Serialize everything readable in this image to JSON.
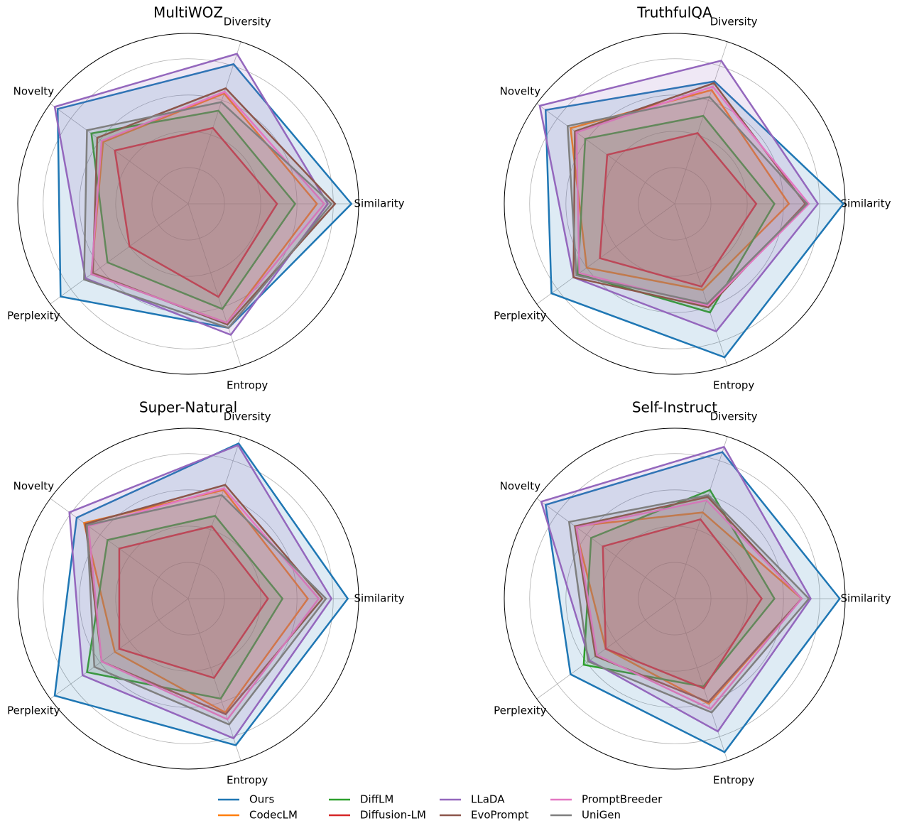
{
  "chart_data": [
    {
      "type": "radar",
      "title": "MultiWOZ",
      "categories": [
        "Similarity",
        "Diversity",
        "Novelty",
        "Perplexity",
        "Entropy"
      ],
      "rlim": [
        0,
        0.94
      ],
      "rticks": [
        0.2,
        0.4,
        0.6,
        0.8
      ],
      "series": [
        {
          "name": "Ours",
          "color": "#1f77b4",
          "values": [
            0.9,
            0.81,
            0.89,
            0.87,
            0.72
          ]
        },
        {
          "name": "CodecLM",
          "color": "#ff7f0e",
          "values": [
            0.71,
            0.64,
            0.58,
            0.66,
            0.69
          ]
        },
        {
          "name": "DiffLM",
          "color": "#2ca02c",
          "values": [
            0.59,
            0.54,
            0.66,
            0.55,
            0.61
          ]
        },
        {
          "name": "Diffusion-LM",
          "color": "#d62728",
          "values": [
            0.49,
            0.44,
            0.5,
            0.4,
            0.54
          ]
        },
        {
          "name": "LLaDA",
          "color": "#9467bd",
          "values": [
            0.77,
            0.87,
            0.91,
            0.7,
            0.76
          ]
        },
        {
          "name": "EvoPrompt",
          "color": "#8c564b",
          "values": [
            0.81,
            0.67,
            0.62,
            0.65,
            0.7
          ]
        },
        {
          "name": "PromptBreeder",
          "color": "#e377c2",
          "values": [
            0.75,
            0.65,
            0.59,
            0.66,
            0.69
          ]
        },
        {
          "name": "UniGen",
          "color": "#7f7f7f",
          "values": [
            0.79,
            0.59,
            0.69,
            0.71,
            0.72
          ]
        }
      ]
    },
    {
      "type": "radar",
      "title": "TruthfulQA",
      "categories": [
        "Similarity",
        "Diversity",
        "Novelty",
        "Perplexity",
        "Entropy"
      ],
      "rlim": [
        0,
        0.94
      ],
      "rticks": [
        0.2,
        0.4,
        0.6,
        0.8
      ],
      "series": [
        {
          "name": "Ours",
          "color": "#1f77b4",
          "values": [
            0.93,
            0.71,
            0.88,
            0.84,
            0.89
          ]
        },
        {
          "name": "CodecLM",
          "color": "#ff7f0e",
          "values": [
            0.63,
            0.66,
            0.71,
            0.6,
            0.5
          ]
        },
        {
          "name": "DiffLM",
          "color": "#2ca02c",
          "values": [
            0.55,
            0.51,
            0.61,
            0.66,
            0.63
          ]
        },
        {
          "name": "Diffusion-LM",
          "color": "#d62728",
          "values": [
            0.45,
            0.41,
            0.46,
            0.51,
            0.48
          ]
        },
        {
          "name": "LLaDA",
          "color": "#9467bd",
          "values": [
            0.79,
            0.83,
            0.92,
            0.69,
            0.74
          ]
        },
        {
          "name": "EvoPrompt",
          "color": "#8c564b",
          "values": [
            0.72,
            0.7,
            0.68,
            0.69,
            0.6
          ]
        },
        {
          "name": "PromptBreeder",
          "color": "#e377c2",
          "values": [
            0.74,
            0.68,
            0.67,
            0.65,
            0.59
          ]
        },
        {
          "name": "UniGen",
          "color": "#7f7f7f",
          "values": [
            0.73,
            0.62,
            0.73,
            0.67,
            0.58
          ]
        }
      ]
    },
    {
      "type": "radar",
      "title": "Super-Natural",
      "categories": [
        "Similarity",
        "Diversity",
        "Novelty",
        "Perplexity",
        "Entropy"
      ],
      "rlim": [
        0,
        0.94
      ],
      "rticks": [
        0.2,
        0.4,
        0.6,
        0.8
      ],
      "series": [
        {
          "name": "Ours",
          "color": "#1f77b4",
          "values": [
            0.88,
            0.9,
            0.76,
            0.91,
            0.85
          ]
        },
        {
          "name": "CodecLM",
          "color": "#ff7f0e",
          "values": [
            0.66,
            0.63,
            0.71,
            0.5,
            0.66
          ]
        },
        {
          "name": "DiffLM",
          "color": "#2ca02c",
          "values": [
            0.52,
            0.48,
            0.55,
            0.69,
            0.58
          ]
        },
        {
          "name": "Diffusion-LM",
          "color": "#d62728",
          "values": [
            0.44,
            0.42,
            0.47,
            0.47,
            0.46
          ]
        },
        {
          "name": "LLaDA",
          "color": "#9467bd",
          "values": [
            0.79,
            0.89,
            0.81,
            0.72,
            0.81
          ]
        },
        {
          "name": "EvoPrompt",
          "color": "#8c564b",
          "values": [
            0.74,
            0.66,
            0.7,
            0.59,
            0.67
          ]
        },
        {
          "name": "PromptBreeder",
          "color": "#e377c2",
          "values": [
            0.72,
            0.64,
            0.68,
            0.59,
            0.7
          ]
        },
        {
          "name": "UniGen",
          "color": "#7f7f7f",
          "values": [
            0.76,
            0.6,
            0.69,
            0.64,
            0.73
          ]
        }
      ]
    },
    {
      "type": "radar",
      "title": "Self-Instruct",
      "categories": [
        "Similarity",
        "Diversity",
        "Novelty",
        "Perplexity",
        "Entropy"
      ],
      "rlim": [
        0,
        0.94
      ],
      "rticks": [
        0.2,
        0.4,
        0.6,
        0.8
      ],
      "series": [
        {
          "name": "Ours",
          "color": "#1f77b4",
          "values": [
            0.91,
            0.85,
            0.88,
            0.71,
            0.89
          ]
        },
        {
          "name": "CodecLM",
          "color": "#ff7f0e",
          "values": [
            0.7,
            0.5,
            0.68,
            0.47,
            0.61
          ]
        },
        {
          "name": "DiffLM",
          "color": "#2ca02c",
          "values": [
            0.55,
            0.63,
            0.57,
            0.62,
            0.51
          ]
        },
        {
          "name": "Diffusion-LM",
          "color": "#d62728",
          "values": [
            0.48,
            0.46,
            0.49,
            0.47,
            0.52
          ]
        },
        {
          "name": "LLaDA",
          "color": "#9467bd",
          "values": [
            0.75,
            0.88,
            0.91,
            0.58,
            0.77
          ]
        },
        {
          "name": "EvoPrompt",
          "color": "#8c564b",
          "values": [
            0.7,
            0.59,
            0.68,
            0.54,
            0.6
          ]
        },
        {
          "name": "PromptBreeder",
          "color": "#e377c2",
          "values": [
            0.7,
            0.57,
            0.67,
            0.53,
            0.64
          ]
        },
        {
          "name": "UniGen",
          "color": "#7f7f7f",
          "values": [
            0.74,
            0.6,
            0.72,
            0.59,
            0.66
          ]
        }
      ]
    }
  ]
}
